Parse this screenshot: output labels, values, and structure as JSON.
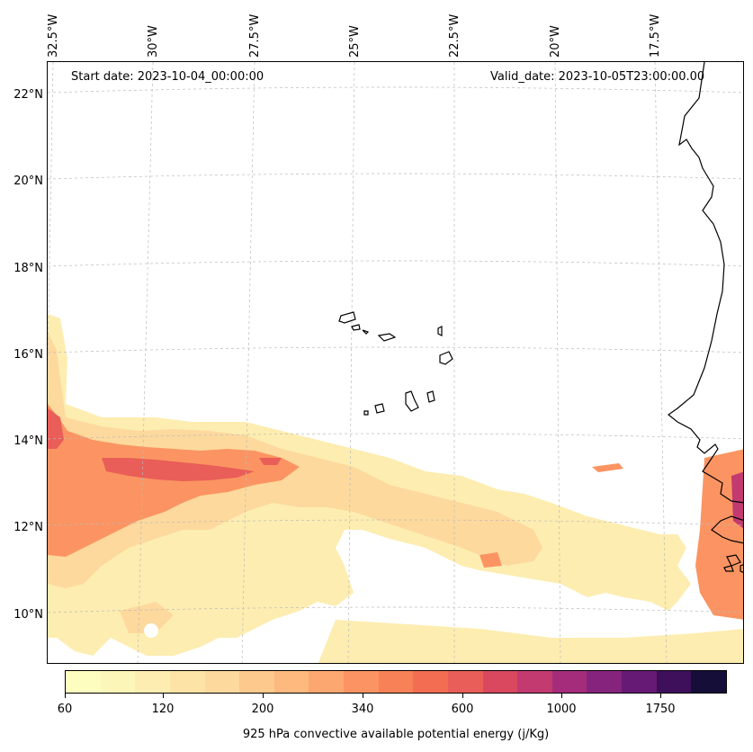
{
  "header": {
    "start_date": "Start date: 2023-10-04_00:00:00",
    "valid_date": "Valid_date: 2023-10-05T23:00:00.00"
  },
  "axes": {
    "lon_labels": [
      "32.5°W",
      "30°W",
      "27.5°W",
      "25°W",
      "22.5°W",
      "20°W",
      "17.5°W"
    ],
    "lat_labels": [
      "22°N",
      "20°N",
      "18°N",
      "16°N",
      "14°N",
      "12°N",
      "10°N"
    ]
  },
  "colorbar": {
    "title": "925 hPa convective available potential energy (j/Kg)",
    "tick_labels": [
      "60",
      "120",
      "200",
      "340",
      "600",
      "1000",
      "1750"
    ],
    "colors": [
      "#fcfdbf",
      "#fcf6b8",
      "#fdedb0",
      "#fde3a6",
      "#fdd99d",
      "#fdc98c",
      "#fdb97e",
      "#fca770",
      "#fb9462",
      "#f88158",
      "#f26d52",
      "#e95e58",
      "#d9485f",
      "#c23a70",
      "#a52c7a",
      "#86247d",
      "#661a75",
      "#3e0f5a",
      "#150e38"
    ]
  },
  "map": {
    "variable": "925 hPa convective available potential energy",
    "units": "j/Kg",
    "grid": true,
    "coastline_color": "#000000"
  }
}
